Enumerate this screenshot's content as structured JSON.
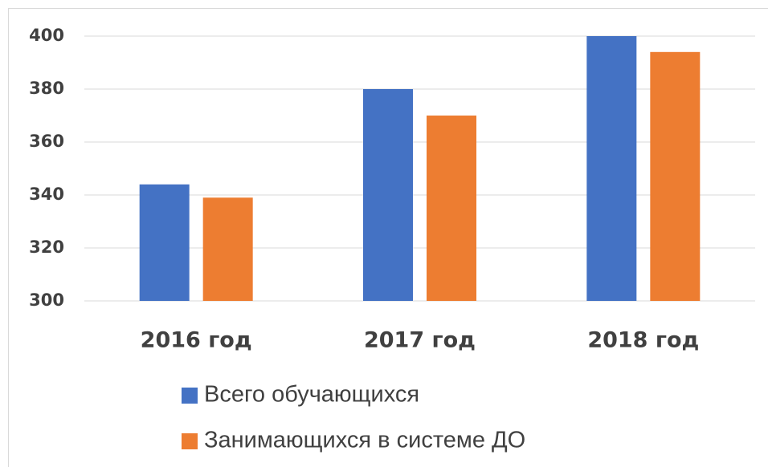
{
  "chart_data": {
    "type": "bar",
    "categories": [
      "2016 год",
      "2017 год",
      "2018 год"
    ],
    "series": [
      {
        "name": "Всего обучающихся",
        "color": "#4472c4",
        "values": [
          344,
          380,
          400
        ]
      },
      {
        "name": "Занимающихся в системе ДО",
        "color": "#ed7d31",
        "values": [
          339,
          370,
          394
        ]
      }
    ],
    "ylim": [
      300,
      400
    ],
    "yticks": [
      300,
      320,
      340,
      360,
      380,
      400
    ],
    "grid": true,
    "legend": "bottom"
  }
}
